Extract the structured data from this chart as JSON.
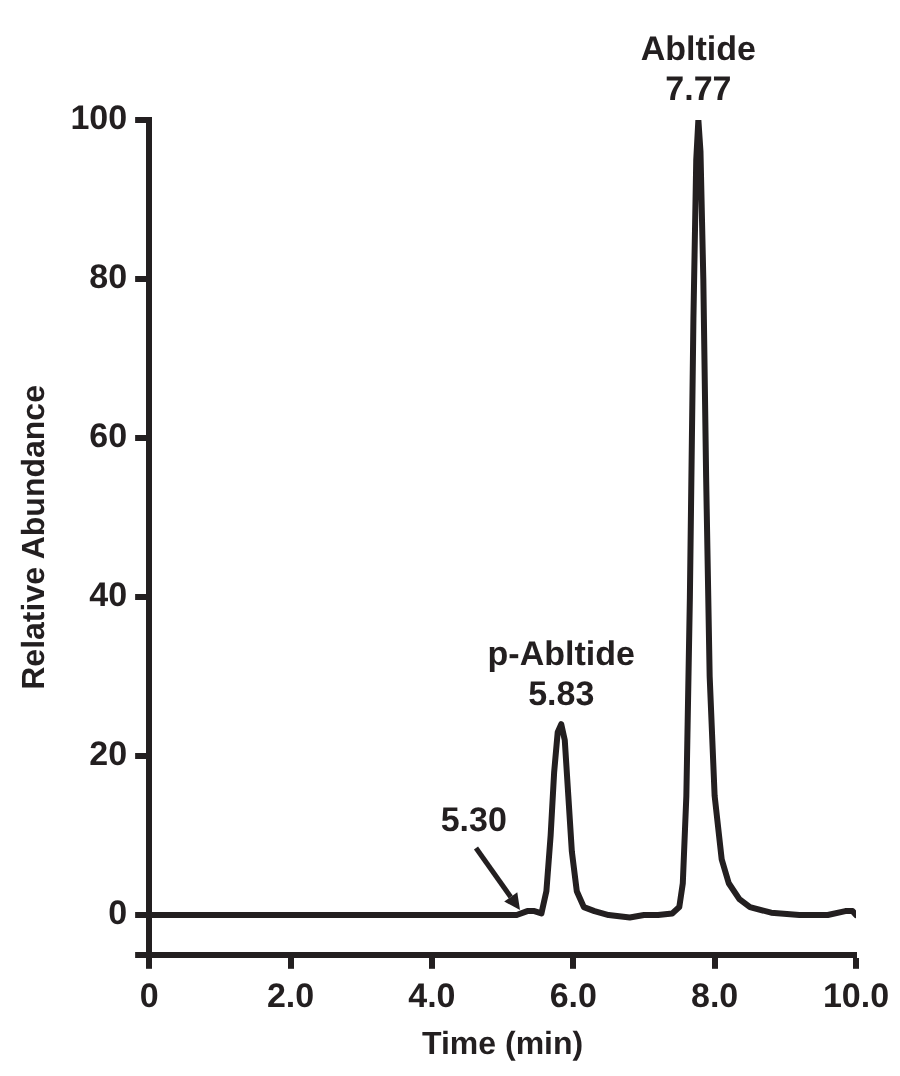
{
  "chart_data": {
    "type": "line",
    "xlabel": "Time (min)",
    "ylabel": "Relative Abundance",
    "x": [
      0,
      5.2,
      5.35,
      5.45,
      5.55,
      5.62,
      5.68,
      5.73,
      5.78,
      5.83,
      5.88,
      5.93,
      5.98,
      6.05,
      6.15,
      6.3,
      6.5,
      6.8,
      7.0,
      7.2,
      7.4,
      7.5,
      7.55,
      7.6,
      7.65,
      7.7,
      7.74,
      7.77,
      7.8,
      7.84,
      7.88,
      7.93,
      8.0,
      8.1,
      8.2,
      8.35,
      8.5,
      8.8,
      9.2,
      9.6,
      9.85,
      9.95,
      10
    ],
    "series": [
      {
        "color": "#231f20",
        "values": [
          0,
          0,
          0.5,
          0.5,
          0.2,
          3,
          10,
          18,
          23,
          24,
          22,
          15,
          8,
          3,
          1,
          0.5,
          0,
          -0.3,
          0,
          0,
          0.2,
          1,
          4,
          15,
          40,
          75,
          95,
          100,
          96,
          80,
          55,
          30,
          15,
          7,
          4,
          2,
          1,
          0.3,
          0,
          0,
          0.5,
          0.5,
          0
        ]
      }
    ],
    "xlim": [
      0,
      10
    ],
    "xticks": [
      0,
      {
        "value": 2,
        "label": "2.0"
      },
      {
        "value": 4,
        "label": "4.0"
      },
      {
        "value": 6,
        "label": "6.0"
      },
      {
        "value": 8,
        "label": "8.0"
      },
      {
        "value": 10,
        "label": "10.0"
      }
    ],
    "ylim": [
      -5,
      100
    ],
    "yticks": [
      {
        "value": -5,
        "label": null
      },
      0,
      20,
      40,
      60,
      80,
      100
    ],
    "grid": false,
    "legend": false,
    "marker": "none",
    "line_style": "solid",
    "annotations": [
      {
        "text": "Abltide\n7.77",
        "x": 7.77,
        "y": 100
      },
      {
        "text": "p-Abltide\n5.83",
        "x": 5.83,
        "y": 24
      },
      {
        "text": "5.30",
        "x": 5.3,
        "y": 0
      }
    ]
  }
}
